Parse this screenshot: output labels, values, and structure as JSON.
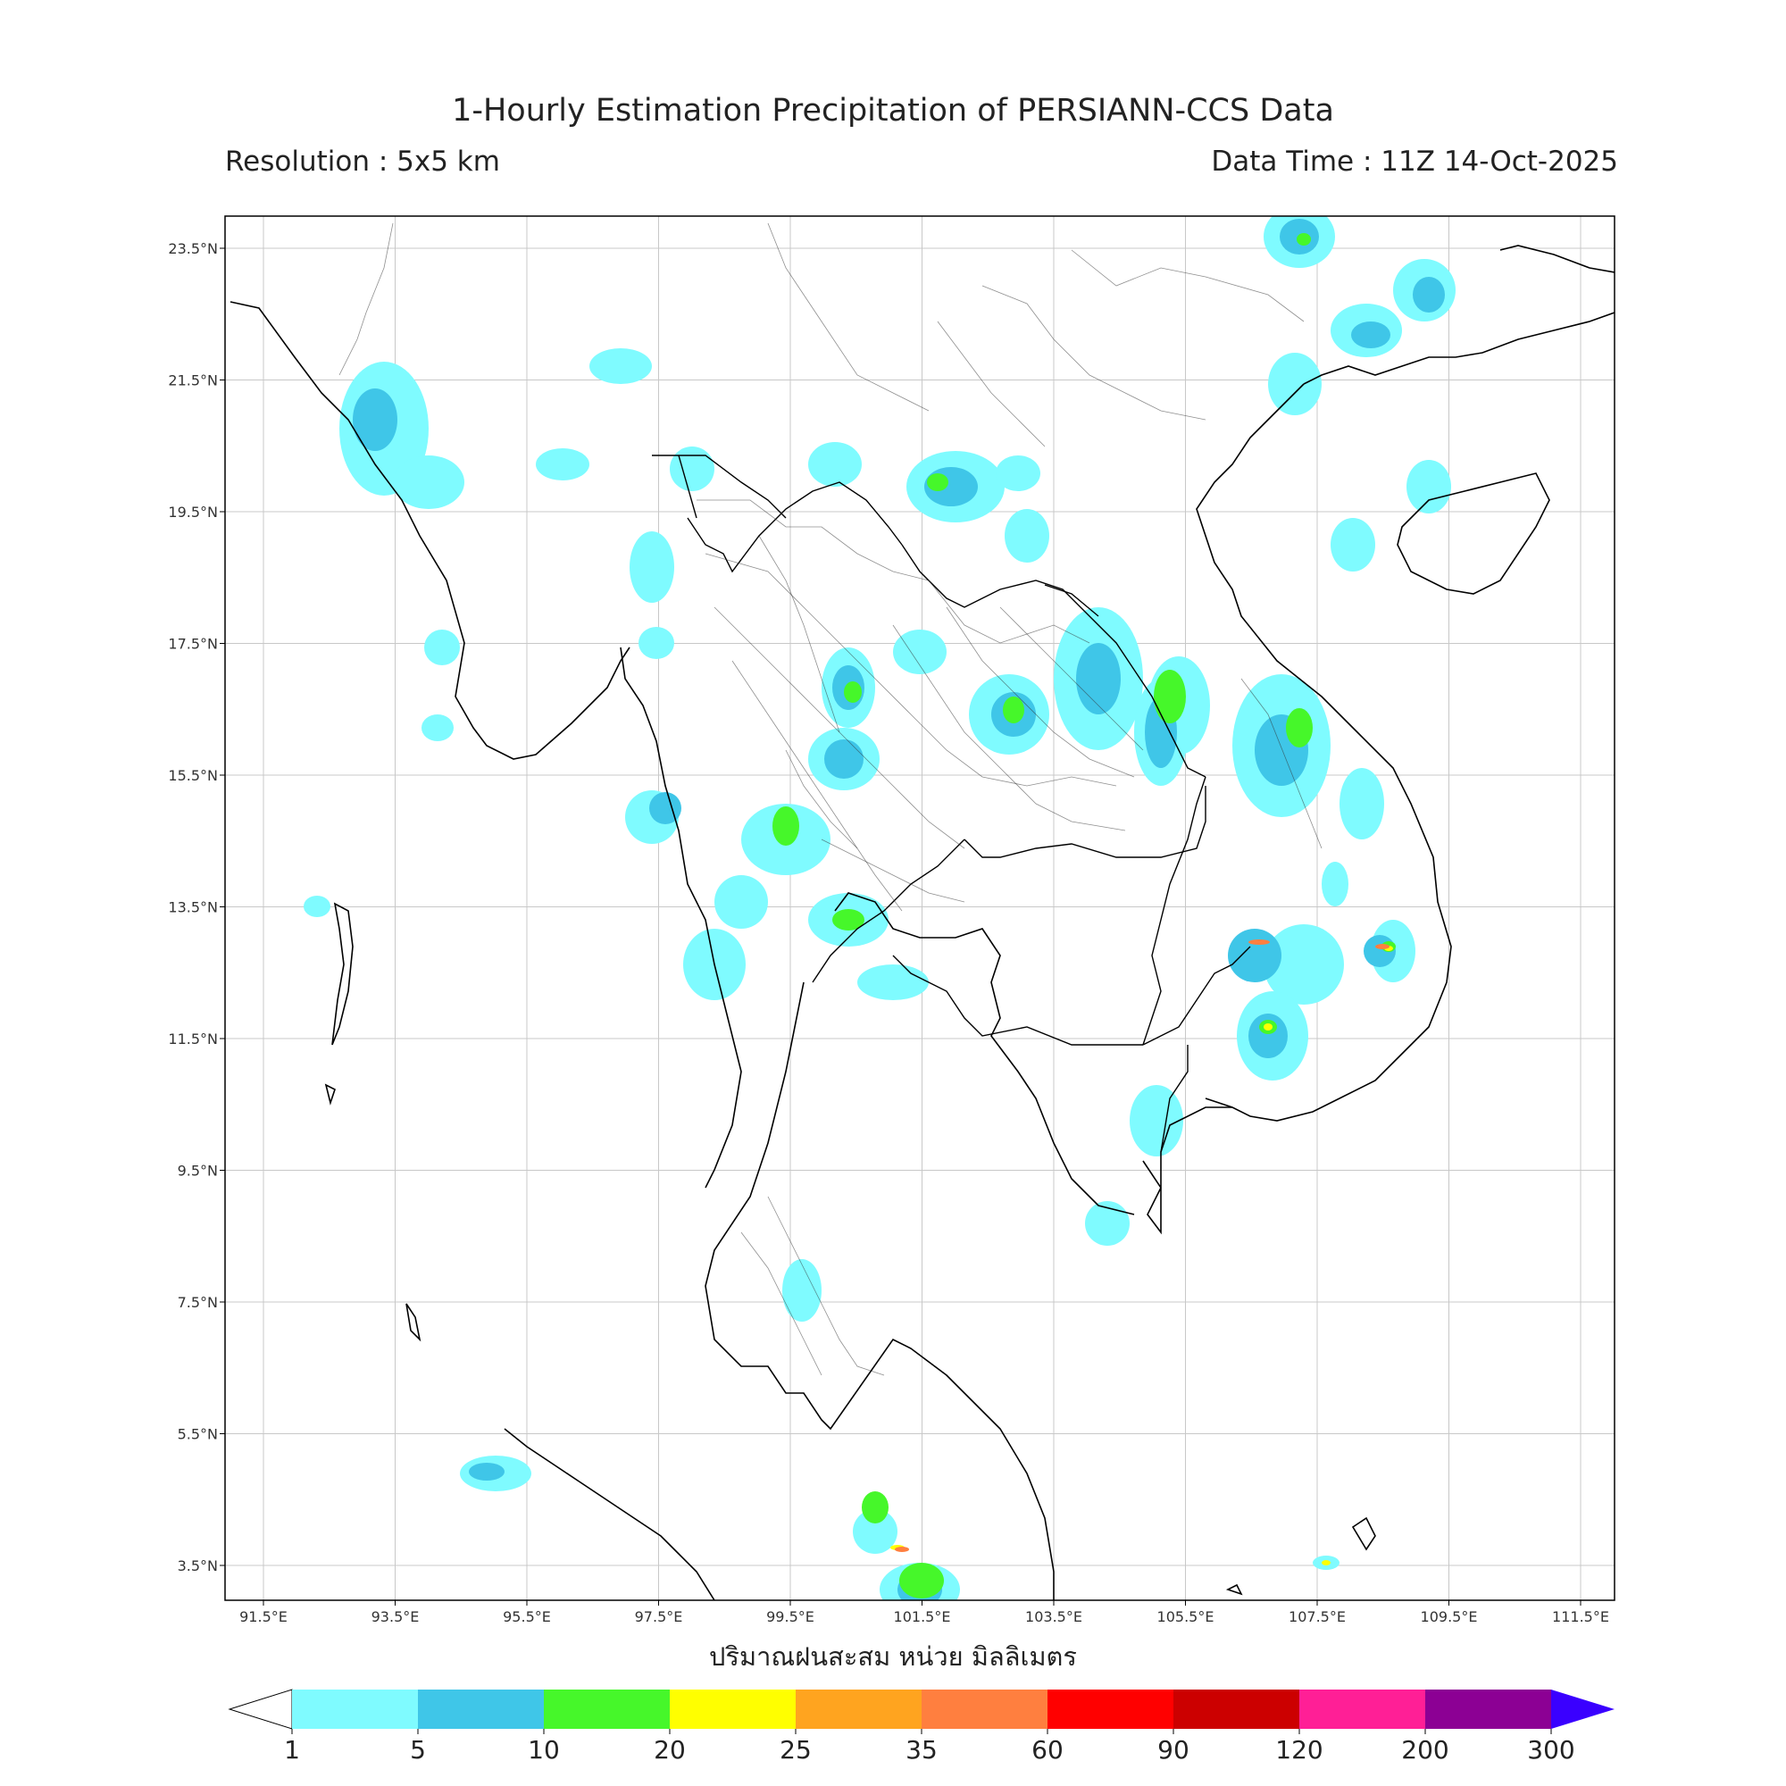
{
  "title": "1-Hourly Estimation Precipitation of PERSIANN-CCS Data",
  "resolution": "Resolution : 5x5 km",
  "data_time": "Data Time : 11Z 14-Oct-2025",
  "x_axis_title": "ปริมาณฝนสะสม หน่วย มิลลิเมตร",
  "lon_ticks": [
    "91.5°E",
    "93.5°E",
    "95.5°E",
    "97.5°E",
    "99.5°E",
    "101.5°E",
    "103.5°E",
    "105.5°E",
    "107.5°E",
    "109.5°E",
    "111.5°E"
  ],
  "lat_ticks": [
    "23.5°N",
    "21.5°N",
    "19.5°N",
    "17.5°N",
    "15.5°N",
    "13.5°N",
    "11.5°N",
    "9.5°N",
    "7.5°N",
    "5.5°N",
    "3.5°N"
  ],
  "colorbar": {
    "labels": [
      "1",
      "5",
      "10",
      "20",
      "25",
      "35",
      "60",
      "90",
      "120",
      "200",
      "300"
    ],
    "colors": [
      "#7ffbff",
      "#3fc6e8",
      "#46f72a",
      "#ffff00",
      "#ffa41f",
      "#ff7f3f",
      "#ff0000",
      "#cc0000",
      "#ff1f96",
      "#8c0094"
    ],
    "over_color": "#3a00ff",
    "under_color": "#ffffff"
  }
}
